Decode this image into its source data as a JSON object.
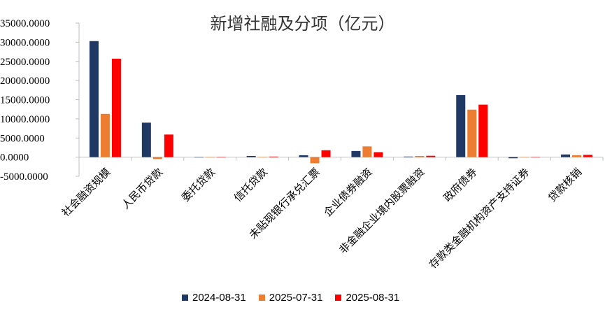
{
  "chart_data": {
    "type": "bar",
    "title": "新增社融及分项（亿元）",
    "categories": [
      "社会融资规模",
      "人民币贷款",
      "委托贷款",
      "信托贷款",
      "未贴现银行承兑汇票",
      "企业债券融资",
      "非金融企业境内股票融资",
      "政府债券",
      "存款类金融机构资产支持证券",
      "贷款核销"
    ],
    "series": [
      {
        "name": "2024-08-31",
        "color": "#1f3864",
        "values": [
          30300,
          9000,
          -50,
          300,
          500,
          1600,
          150,
          16200,
          -300,
          700
        ]
      },
      {
        "name": "2025-07-31",
        "color": "#ed7d31",
        "values": [
          11300,
          -500,
          0,
          50,
          -1600,
          2800,
          300,
          12400,
          0,
          500
        ]
      },
      {
        "name": "2025-08-31",
        "color": "#ff0000",
        "values": [
          25700,
          5900,
          -20,
          150,
          1800,
          1300,
          350,
          13700,
          -50,
          600
        ]
      }
    ],
    "yticks": [
      "35000.0000",
      "30000.0000",
      "25000.0000",
      "20000.0000",
      "15000.0000",
      "10000.0000",
      "5000.0000",
      "0.0000",
      "-5000.0000"
    ],
    "ylim": [
      -5000,
      35000
    ],
    "legend_position": "bottom",
    "grid": false
  }
}
